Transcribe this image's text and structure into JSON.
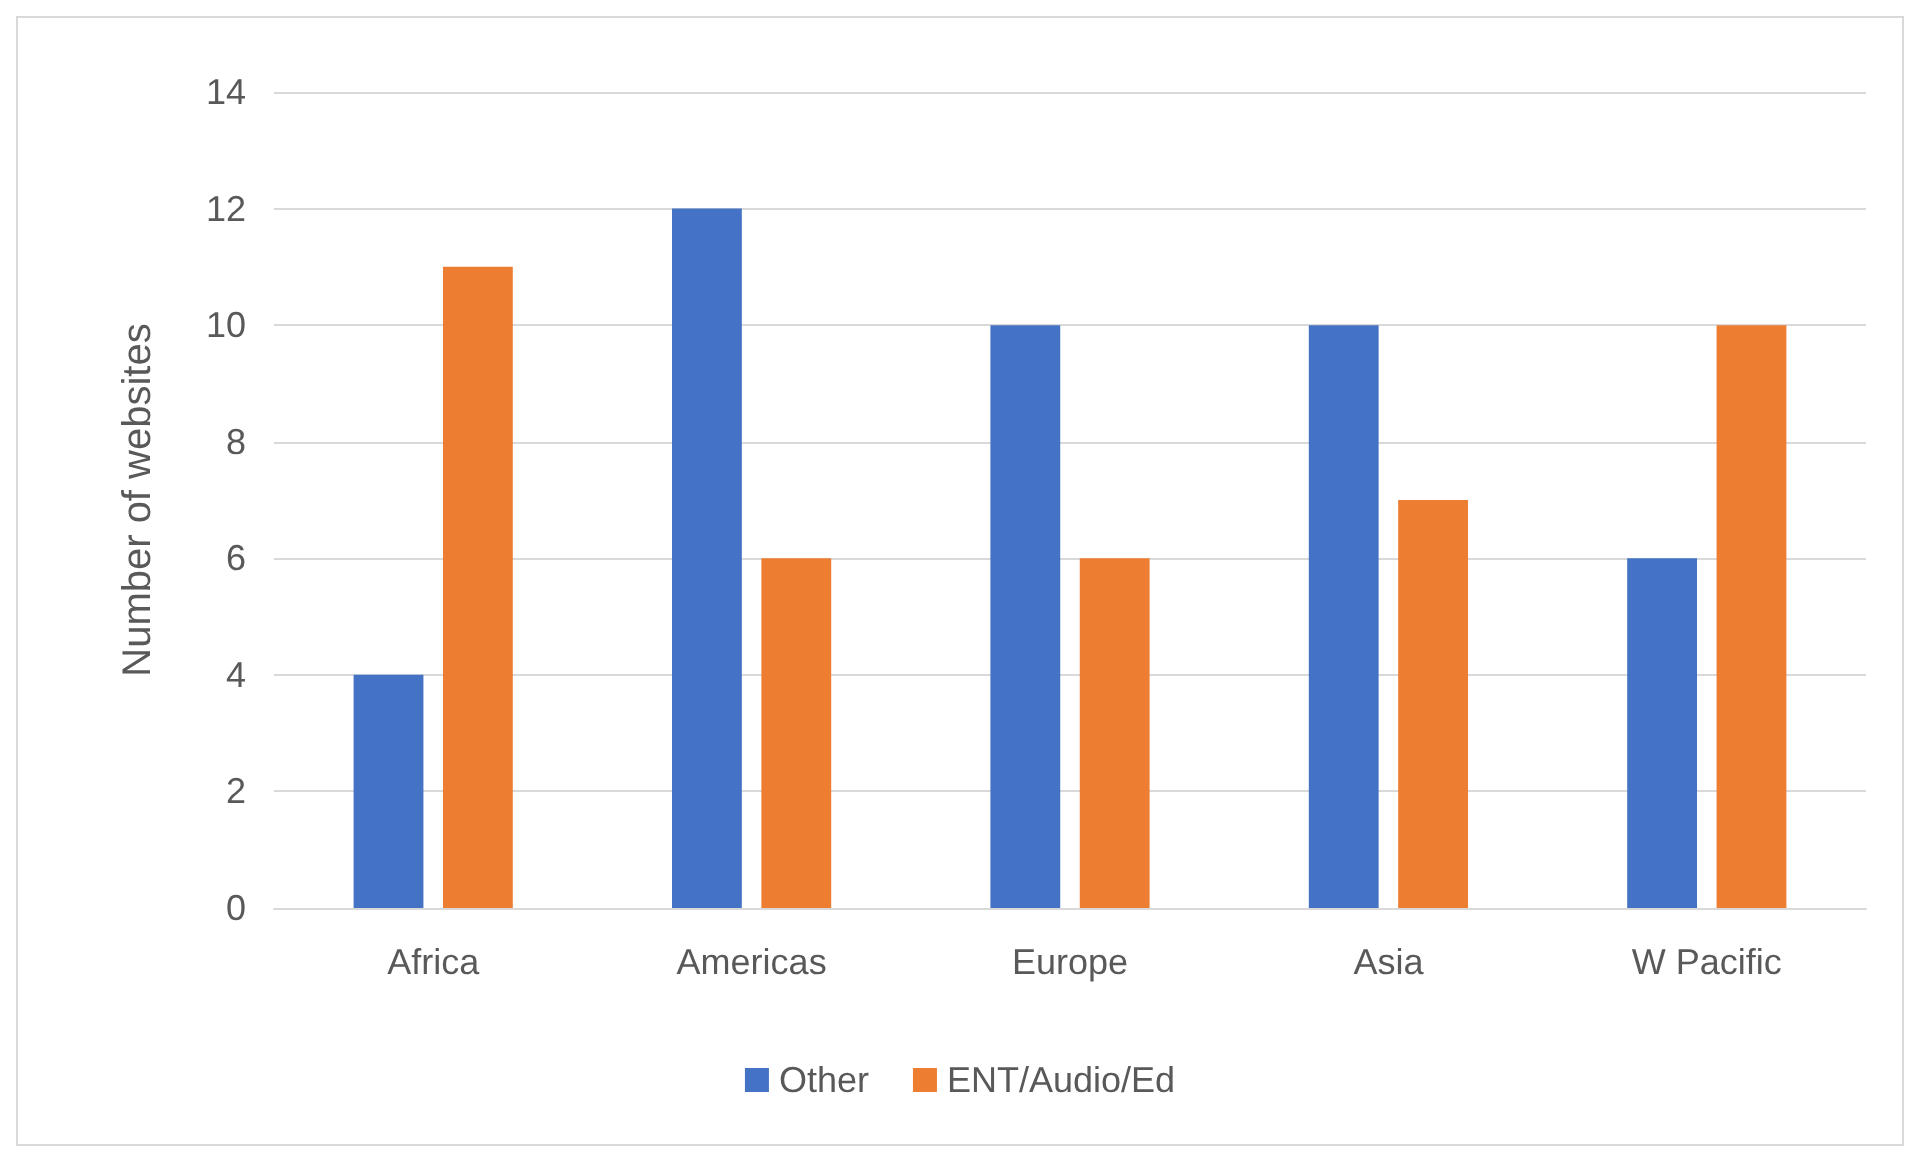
{
  "chart_data": {
    "type": "bar",
    "ylabel": "Number of websites",
    "categories": [
      "Africa",
      "Americas",
      "Europe",
      "Asia",
      "W Pacific"
    ],
    "series": [
      {
        "name": "Other",
        "color": "#4472c4",
        "values": [
          4,
          12,
          10,
          10,
          6
        ]
      },
      {
        "name": "ENT/Audio/Ed",
        "color": "#ed7d31",
        "values": [
          11,
          6,
          6,
          7,
          10
        ]
      }
    ],
    "ylim": [
      0,
      14
    ],
    "yticks": [
      0,
      2,
      4,
      6,
      8,
      10,
      12,
      14
    ],
    "grid": "y",
    "legend": "bottom"
  }
}
